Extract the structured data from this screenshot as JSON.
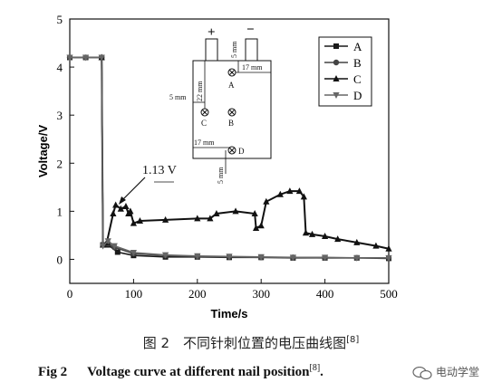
{
  "chart_data": {
    "type": "line",
    "xlabel": "Time/s",
    "ylabel": "Voltage/V",
    "xlim": [
      0,
      500
    ],
    "ylim": [
      -0.5,
      5
    ],
    "xticks": [
      0,
      100,
      200,
      300,
      400,
      500
    ],
    "yticks": [
      0,
      1,
      2,
      3,
      4,
      5
    ],
    "grid": false,
    "legend_position": "top-right",
    "annotation": "1.13 V",
    "series": [
      {
        "name": "A",
        "marker": "square",
        "x": [
          0,
          25,
          50,
          52,
          60,
          75,
          100,
          150,
          200,
          250,
          300,
          350,
          400,
          450,
          500
        ],
        "y": [
          4.2,
          4.2,
          4.2,
          0.3,
          0.3,
          0.15,
          0.08,
          0.05,
          0.05,
          0.04,
          0.04,
          0.03,
          0.03,
          0.03,
          0.02
        ]
      },
      {
        "name": "B",
        "marker": "circle",
        "x": [
          0,
          25,
          50,
          52,
          60,
          70,
          100,
          150,
          200,
          250,
          300,
          350,
          400,
          450,
          500
        ],
        "y": [
          4.2,
          4.2,
          4.2,
          0.3,
          0.33,
          0.25,
          0.12,
          0.08,
          0.06,
          0.05,
          0.04,
          0.04,
          0.03,
          0.03,
          0.03
        ]
      },
      {
        "name": "C",
        "marker": "triangle-up",
        "x": [
          50,
          52,
          58,
          68,
          72,
          80,
          88,
          92,
          95,
          100,
          110,
          150,
          200,
          220,
          230,
          260,
          290,
          292,
          300,
          308,
          330,
          345,
          360,
          367,
          370,
          380,
          400,
          420,
          450,
          480,
          500
        ],
        "y": [
          4.2,
          0.3,
          0.35,
          0.95,
          1.13,
          1.05,
          1.1,
          0.95,
          1.0,
          0.75,
          0.8,
          0.82,
          0.85,
          0.85,
          0.95,
          1.0,
          0.95,
          0.65,
          0.7,
          1.2,
          1.35,
          1.42,
          1.42,
          1.3,
          0.55,
          0.52,
          0.48,
          0.42,
          0.35,
          0.28,
          0.22
        ]
      },
      {
        "name": "D",
        "marker": "triangle-down",
        "x": [
          0,
          25,
          50,
          52,
          60,
          70,
          100,
          150,
          200,
          250,
          300,
          350,
          400,
          450,
          500
        ],
        "y": [
          4.2,
          4.2,
          4.2,
          0.28,
          0.38,
          0.28,
          0.14,
          0.09,
          0.07,
          0.06,
          0.05,
          0.04,
          0.04,
          0.03,
          0.03
        ]
      }
    ],
    "inset": {
      "terminals": [
        "+",
        "−"
      ],
      "points": [
        "A",
        "B",
        "C",
        "D"
      ],
      "dimensions": [
        "5 mm",
        "17 mm",
        "22 mm",
        "5 mm",
        "17 mm",
        "5 mm"
      ]
    }
  },
  "caption_cn": "图 2　不同针刺位置的电压曲线图",
  "caption_cn_ref": "[8]",
  "caption_en_fig": "Fig 2",
  "caption_en_text": "Voltage curve at different nail position",
  "caption_en_ref": "[8]",
  "caption_en_end": ".",
  "watermark": "电动学堂"
}
